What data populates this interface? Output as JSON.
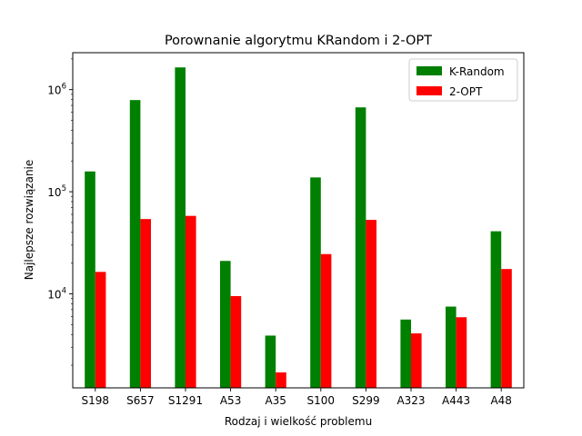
{
  "chart_data": {
    "type": "bar",
    "title": "Porownanie algorytmu KRandom i 2-OPT",
    "xlabel": "Rodzaj i wielkość problemu",
    "ylabel": "Najlepsze rozwiązanie",
    "yscale": "log",
    "ylim": [
      1200,
      2300000
    ],
    "yticks": [
      {
        "value": 10000,
        "base": "10",
        "exp": "4"
      },
      {
        "value": 100000,
        "base": "10",
        "exp": "5"
      },
      {
        "value": 1000000,
        "base": "10",
        "exp": "6"
      }
    ],
    "categories": [
      "S198",
      "S657",
      "S1291",
      "A53",
      "A35",
      "S100",
      "S299",
      "A323",
      "A443",
      "A48"
    ],
    "series": [
      {
        "name": "K-Random",
        "color": "#008000",
        "values": [
          158000,
          790000,
          1650000,
          21000,
          3900,
          138000,
          670000,
          5600,
          7500,
          41000
        ]
      },
      {
        "name": "2-OPT",
        "color": "#ff0000",
        "values": [
          16400,
          54000,
          58000,
          9500,
          1700,
          24500,
          53000,
          4100,
          5900,
          17500
        ]
      }
    ],
    "legend": "top-right",
    "grid": false
  }
}
